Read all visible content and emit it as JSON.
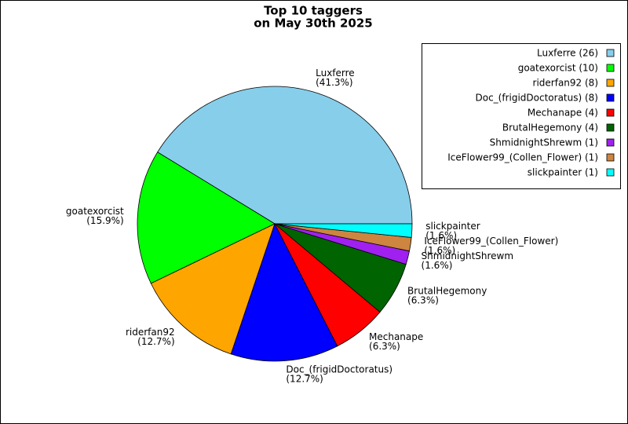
{
  "chart_data": {
    "type": "pie",
    "title": [
      "Top 10 taggers",
      "on May 30th 2025"
    ],
    "categories": [
      "Luxferre",
      "goatexorcist",
      "riderfan92",
      "Doc_(frigidDoctoratus)",
      "Mechanape",
      "BrutalHegemony",
      "ShmidnightShrewm",
      "IceFlower99_(Collen_Flower)",
      "slickpainter"
    ],
    "values": [
      26,
      10,
      8,
      8,
      4,
      4,
      1,
      1,
      1
    ],
    "value_labels": [
      "(41.3%)",
      "(15.9%)",
      "(12.7%)",
      "(12.7%)",
      "(6.3%)",
      "(6.3%)",
      "(1.6%)",
      "(1.6%)",
      "(1.6%)"
    ],
    "legend_labels": [
      "Luxferre (26)",
      "goatexorcist (10)",
      "riderfan92 (8)",
      "Doc_(frigidDoctoratus) (8)",
      "Mechanape (4)",
      "BrutalHegemony (4)",
      "ShmidnightShrewm (1)",
      "IceFlower99_(Collen_Flower) (1)",
      "slickpainter (1)"
    ],
    "colors": [
      "#87ceeb",
      "#00ff00",
      "#ffa500",
      "#0000ff",
      "#ff0000",
      "#006400",
      "#a020f0",
      "#cd853f",
      "#00ffff"
    ],
    "legend": "upper right"
  }
}
